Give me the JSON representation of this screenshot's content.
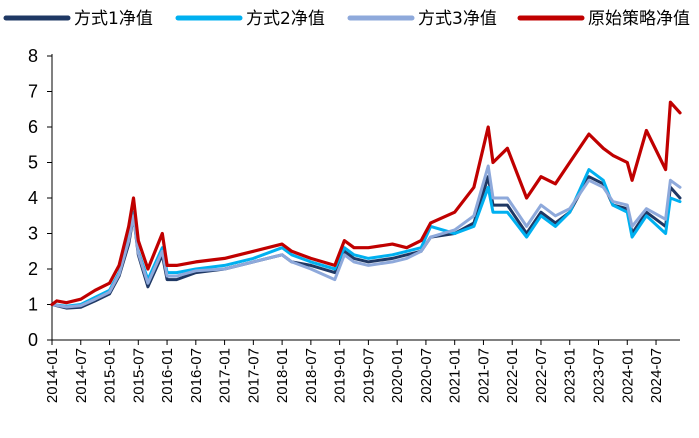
{
  "chart_data": {
    "type": "line",
    "title": "",
    "xlabel": "",
    "ylabel": "",
    "ylim": [
      0,
      8
    ],
    "yticks": [
      0,
      1,
      2,
      3,
      4,
      5,
      6,
      7,
      8
    ],
    "xlim": [
      "2014-01",
      "2024-12"
    ],
    "xtick_labels": [
      "2014-01",
      "2014-07",
      "2015-01",
      "2015-07",
      "2016-01",
      "2016-07",
      "2017-01",
      "2017-07",
      "2018-01",
      "2018-07",
      "2019-01",
      "2019-07",
      "2020-01",
      "2020-07",
      "2021-01",
      "2021-07",
      "2022-01",
      "2022-07",
      "2023-01",
      "2023-07",
      "2024-01",
      "2024-07"
    ],
    "grid": false,
    "legend_position": "top",
    "series": [
      {
        "name": "方式1净值",
        "color": "#1F3864",
        "points": [
          [
            "2014-01",
            1.0
          ],
          [
            "2014-04",
            0.9
          ],
          [
            "2014-07",
            0.92
          ],
          [
            "2014-10",
            1.1
          ],
          [
            "2015-01",
            1.3
          ],
          [
            "2015-03",
            1.8
          ],
          [
            "2015-05",
            2.7
          ],
          [
            "2015-06",
            3.5
          ],
          [
            "2015-07",
            2.4
          ],
          [
            "2015-09",
            1.5
          ],
          [
            "2015-12",
            2.4
          ],
          [
            "2016-01",
            1.7
          ],
          [
            "2016-03",
            1.7
          ],
          [
            "2016-07",
            1.9
          ],
          [
            "2017-01",
            2.0
          ],
          [
            "2017-07",
            2.2
          ],
          [
            "2018-01",
            2.4
          ],
          [
            "2018-03",
            2.2
          ],
          [
            "2018-07",
            2.1
          ],
          [
            "2018-12",
            1.9
          ],
          [
            "2019-02",
            2.5
          ],
          [
            "2019-04",
            2.3
          ],
          [
            "2019-07",
            2.2
          ],
          [
            "2019-12",
            2.3
          ],
          [
            "2020-03",
            2.4
          ],
          [
            "2020-06",
            2.5
          ],
          [
            "2020-08",
            2.9
          ],
          [
            "2021-01",
            3.0
          ],
          [
            "2021-05",
            3.3
          ],
          [
            "2021-08",
            4.6
          ],
          [
            "2021-09",
            3.8
          ],
          [
            "2021-12",
            3.8
          ],
          [
            "2022-04",
            3.0
          ],
          [
            "2022-07",
            3.6
          ],
          [
            "2022-10",
            3.3
          ],
          [
            "2023-01",
            3.6
          ],
          [
            "2023-05",
            4.6
          ],
          [
            "2023-08",
            4.4
          ],
          [
            "2023-10",
            3.8
          ],
          [
            "2024-01",
            3.7
          ],
          [
            "2024-02",
            3.0
          ],
          [
            "2024-05",
            3.6
          ],
          [
            "2024-09",
            3.2
          ],
          [
            "2024-10",
            4.3
          ],
          [
            "2024-12",
            4.0
          ]
        ]
      },
      {
        "name": "方式2净值",
        "color": "#00B0F0",
        "points": [
          [
            "2014-01",
            1.0
          ],
          [
            "2014-04",
            0.95
          ],
          [
            "2014-07",
            1.0
          ],
          [
            "2014-10",
            1.2
          ],
          [
            "2015-01",
            1.4
          ],
          [
            "2015-03",
            1.9
          ],
          [
            "2015-05",
            2.9
          ],
          [
            "2015-06",
            3.6
          ],
          [
            "2015-07",
            2.5
          ],
          [
            "2015-09",
            1.7
          ],
          [
            "2015-12",
            2.6
          ],
          [
            "2016-01",
            1.9
          ],
          [
            "2016-03",
            1.9
          ],
          [
            "2016-07",
            2.0
          ],
          [
            "2017-01",
            2.1
          ],
          [
            "2017-07",
            2.3
          ],
          [
            "2018-01",
            2.6
          ],
          [
            "2018-03",
            2.4
          ],
          [
            "2018-07",
            2.2
          ],
          [
            "2018-12",
            2.0
          ],
          [
            "2019-02",
            2.6
          ],
          [
            "2019-04",
            2.4
          ],
          [
            "2019-07",
            2.3
          ],
          [
            "2019-12",
            2.4
          ],
          [
            "2020-03",
            2.5
          ],
          [
            "2020-06",
            2.6
          ],
          [
            "2020-08",
            3.2
          ],
          [
            "2021-01",
            3.0
          ],
          [
            "2021-05",
            3.2
          ],
          [
            "2021-08",
            4.3
          ],
          [
            "2021-09",
            3.6
          ],
          [
            "2021-12",
            3.6
          ],
          [
            "2022-04",
            2.9
          ],
          [
            "2022-07",
            3.5
          ],
          [
            "2022-10",
            3.2
          ],
          [
            "2023-01",
            3.6
          ],
          [
            "2023-05",
            4.8
          ],
          [
            "2023-08",
            4.5
          ],
          [
            "2023-10",
            3.8
          ],
          [
            "2024-01",
            3.6
          ],
          [
            "2024-02",
            2.9
          ],
          [
            "2024-05",
            3.5
          ],
          [
            "2024-09",
            3.0
          ],
          [
            "2024-10",
            4.0
          ],
          [
            "2024-12",
            3.9
          ]
        ]
      },
      {
        "name": "方式3净值",
        "color": "#8EA9DB",
        "points": [
          [
            "2014-01",
            1.0
          ],
          [
            "2014-04",
            0.93
          ],
          [
            "2014-07",
            0.97
          ],
          [
            "2014-10",
            1.15
          ],
          [
            "2015-01",
            1.35
          ],
          [
            "2015-03",
            1.85
          ],
          [
            "2015-05",
            2.8
          ],
          [
            "2015-06",
            3.5
          ],
          [
            "2015-07",
            2.45
          ],
          [
            "2015-09",
            1.6
          ],
          [
            "2015-12",
            2.5
          ],
          [
            "2016-01",
            1.8
          ],
          [
            "2016-03",
            1.8
          ],
          [
            "2016-07",
            1.95
          ],
          [
            "2017-01",
            2.0
          ],
          [
            "2017-07",
            2.2
          ],
          [
            "2018-01",
            2.4
          ],
          [
            "2018-03",
            2.2
          ],
          [
            "2018-07",
            2.0
          ],
          [
            "2018-12",
            1.7
          ],
          [
            "2019-02",
            2.4
          ],
          [
            "2019-04",
            2.2
          ],
          [
            "2019-07",
            2.1
          ],
          [
            "2019-12",
            2.2
          ],
          [
            "2020-03",
            2.3
          ],
          [
            "2020-06",
            2.5
          ],
          [
            "2020-08",
            2.9
          ],
          [
            "2021-01",
            3.1
          ],
          [
            "2021-05",
            3.5
          ],
          [
            "2021-08",
            4.9
          ],
          [
            "2021-09",
            4.0
          ],
          [
            "2021-12",
            4.0
          ],
          [
            "2022-04",
            3.2
          ],
          [
            "2022-07",
            3.8
          ],
          [
            "2022-10",
            3.5
          ],
          [
            "2023-01",
            3.7
          ],
          [
            "2023-05",
            4.5
          ],
          [
            "2023-08",
            4.3
          ],
          [
            "2023-10",
            3.9
          ],
          [
            "2024-01",
            3.8
          ],
          [
            "2024-02",
            3.2
          ],
          [
            "2024-05",
            3.7
          ],
          [
            "2024-09",
            3.4
          ],
          [
            "2024-10",
            4.5
          ],
          [
            "2024-12",
            4.3
          ]
        ]
      },
      {
        "name": "原始策略净值",
        "color": "#C00000",
        "points": [
          [
            "2014-01",
            1.0
          ],
          [
            "2014-02",
            1.1
          ],
          [
            "2014-04",
            1.05
          ],
          [
            "2014-07",
            1.15
          ],
          [
            "2014-10",
            1.4
          ],
          [
            "2015-01",
            1.6
          ],
          [
            "2015-03",
            2.1
          ],
          [
            "2015-05",
            3.2
          ],
          [
            "2015-06",
            4.0
          ],
          [
            "2015-07",
            2.8
          ],
          [
            "2015-09",
            2.0
          ],
          [
            "2015-12",
            3.0
          ],
          [
            "2016-01",
            2.1
          ],
          [
            "2016-03",
            2.1
          ],
          [
            "2016-07",
            2.2
          ],
          [
            "2017-01",
            2.3
          ],
          [
            "2017-07",
            2.5
          ],
          [
            "2018-01",
            2.7
          ],
          [
            "2018-03",
            2.5
          ],
          [
            "2018-07",
            2.3
          ],
          [
            "2018-12",
            2.1
          ],
          [
            "2019-02",
            2.8
          ],
          [
            "2019-04",
            2.6
          ],
          [
            "2019-07",
            2.6
          ],
          [
            "2019-12",
            2.7
          ],
          [
            "2020-03",
            2.6
          ],
          [
            "2020-06",
            2.8
          ],
          [
            "2020-08",
            3.3
          ],
          [
            "2021-01",
            3.6
          ],
          [
            "2021-05",
            4.3
          ],
          [
            "2021-08",
            6.0
          ],
          [
            "2021-09",
            5.0
          ],
          [
            "2021-12",
            5.4
          ],
          [
            "2022-04",
            4.0
          ],
          [
            "2022-07",
            4.6
          ],
          [
            "2022-10",
            4.4
          ],
          [
            "2023-01",
            5.0
          ],
          [
            "2023-05",
            5.8
          ],
          [
            "2023-08",
            5.4
          ],
          [
            "2023-10",
            5.2
          ],
          [
            "2024-01",
            5.0
          ],
          [
            "2024-02",
            4.5
          ],
          [
            "2024-05",
            5.9
          ],
          [
            "2024-09",
            4.8
          ],
          [
            "2024-10",
            6.7
          ],
          [
            "2024-12",
            6.4
          ]
        ]
      }
    ]
  }
}
